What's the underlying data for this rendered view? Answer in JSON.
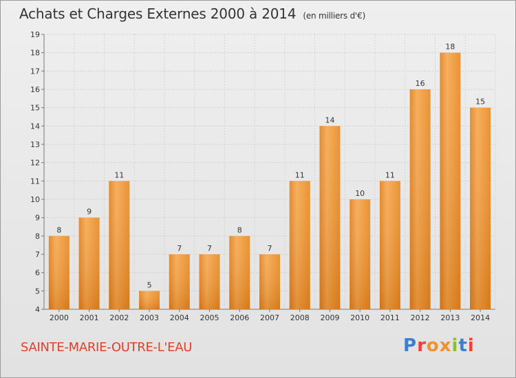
{
  "header": {
    "title": "Achats et Charges Externes 2000 à 2014",
    "unit": "(en milliers d'€)"
  },
  "footer": {
    "place": "SAINTE-MARIE-OUTRE-L'EAU",
    "logo_text": "Proxiti",
    "logo_letters": [
      "P",
      "r",
      "o",
      "x",
      "i",
      "t",
      "i"
    ]
  },
  "colors": {
    "bar": "#f0902a",
    "bar_light": "#f6ac58",
    "bar_dark": "#d9761a",
    "background": "#e8e8e8",
    "place_text": "#e0402e"
  },
  "chart_data": {
    "type": "bar",
    "title": "Achats et Charges Externes 2000 à 2014",
    "subtitle": "(en milliers d'€)",
    "categories": [
      "2000",
      "2001",
      "2002",
      "2003",
      "2004",
      "2005",
      "2006",
      "2007",
      "2008",
      "2009",
      "2010",
      "2011",
      "2012",
      "2013",
      "2014"
    ],
    "values": [
      8,
      9,
      11,
      5,
      7,
      7,
      8,
      7,
      11,
      14,
      10,
      11,
      16,
      18,
      15
    ],
    "ylim": [
      4,
      19
    ],
    "yticks": [
      4,
      5,
      6,
      7,
      8,
      9,
      10,
      11,
      12,
      13,
      14,
      15,
      16,
      17,
      18,
      19
    ],
    "grid": true,
    "data_labels": true
  }
}
